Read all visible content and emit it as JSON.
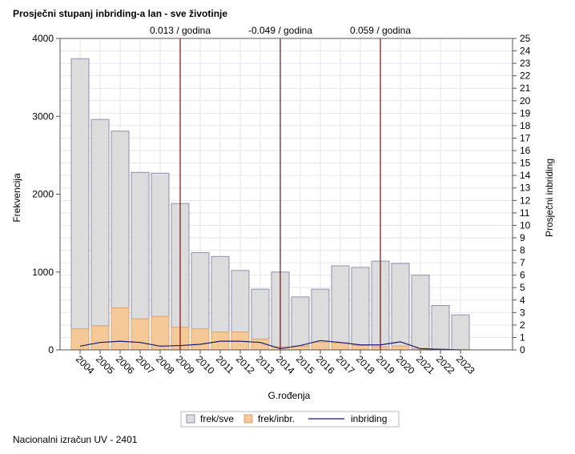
{
  "chart_data": {
    "type": "bar",
    "title": "Prosječni stupanj inbriding-a lan - sve životinje",
    "xlabel": "G.rođenja",
    "ylabel": "Frekvencija",
    "y2label": "Prosječni inbriding",
    "ylim": [
      0,
      4000
    ],
    "y2lim": [
      0,
      25
    ],
    "yticks": [
      "0",
      "1000",
      "2000",
      "3000",
      "4000"
    ],
    "y2ticks": [
      "0",
      "1",
      "2",
      "3",
      "4",
      "5",
      "6",
      "7",
      "8",
      "9",
      "10",
      "11",
      "12",
      "13",
      "14",
      "15",
      "16",
      "17",
      "18",
      "19",
      "20",
      "21",
      "22",
      "23",
      "24",
      "25"
    ],
    "grid": true,
    "categories": [
      "2004",
      "2005",
      "2006",
      "2007",
      "2008",
      "2009",
      "2010",
      "2011",
      "2012",
      "2013",
      "2014",
      "2015",
      "2016",
      "2017",
      "2018",
      "2019",
      "2020",
      "2021",
      "2022",
      "2023"
    ],
    "series": [
      {
        "name": "frek/sve",
        "kind": "bar",
        "axis": "left",
        "color": "#dcdcdc",
        "stroke": "#8f8fb0",
        "values": [
          3740,
          2960,
          2810,
          2280,
          2270,
          1880,
          1250,
          1200,
          1020,
          780,
          1000,
          680,
          780,
          1080,
          1060,
          1140,
          1110,
          960,
          570,
          450
        ]
      },
      {
        "name": "frek/inbr.",
        "kind": "bar",
        "axis": "left",
        "color": "#f5c898",
        "stroke": "#d9a273",
        "values": [
          270,
          310,
          540,
          400,
          430,
          290,
          270,
          230,
          230,
          140,
          40,
          50,
          100,
          90,
          60,
          40,
          50,
          20,
          10,
          5
        ]
      },
      {
        "name": "inbriding",
        "kind": "line",
        "axis": "right",
        "color": "#1a1a6e",
        "values": [
          0.3,
          0.6,
          0.7,
          0.6,
          0.3,
          0.35,
          0.45,
          0.7,
          0.7,
          0.6,
          0.1,
          0.35,
          0.75,
          0.6,
          0.4,
          0.4,
          0.65,
          0.1,
          0.05,
          0.0
        ]
      }
    ],
    "trend_lines": [
      {
        "at": "2009",
        "label": "0.013 / godina"
      },
      {
        "at": "2014",
        "label": "-0.049 / godina"
      },
      {
        "at": "2019",
        "label": "0.059 / godina"
      }
    ],
    "legend_position": "bottom-center"
  },
  "footnote": "Nacionalni izračun UV - 2401",
  "colors": {
    "trend_line": "#7a1010",
    "grid": "#e6e6ee",
    "axis": "#555555"
  }
}
